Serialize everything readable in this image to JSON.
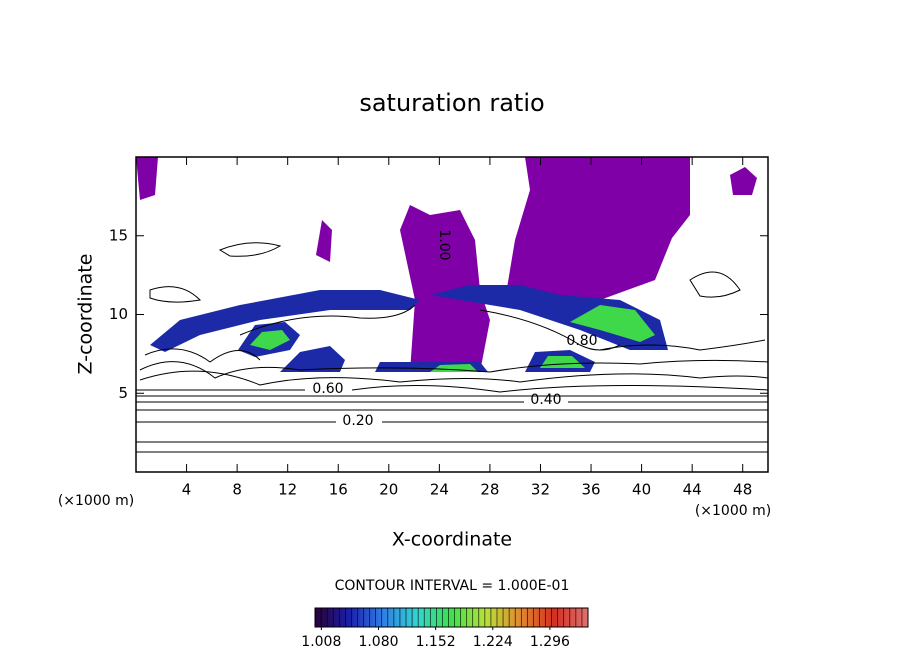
{
  "chart_data": {
    "type": "contour",
    "title": "saturation ratio",
    "x_label": "X-coordinate",
    "y_label": "Z-coordinate",
    "x_unit_label": "(×1000 m)",
    "y_unit_label": "(×1000 m)",
    "xlim": [
      0,
      50
    ],
    "ylim": [
      0,
      20
    ],
    "xticks": [
      4,
      8,
      12,
      16,
      20,
      24,
      28,
      32,
      36,
      40,
      44,
      48
    ],
    "yticks": [
      5,
      10,
      15
    ],
    "contour_interval_label": "CONTOUR INTERVAL = 1.000E-01",
    "contour_labels": [
      {
        "value": 0.2,
        "label": "0.20"
      },
      {
        "value": 0.4,
        "label": "0.40"
      },
      {
        "value": 0.6,
        "label": "0.60"
      },
      {
        "value": 0.8,
        "label": "0.80"
      },
      {
        "value": 1,
        "label": "1.00"
      }
    ],
    "colorbar": {
      "lim": [
        1.0,
        1.344
      ],
      "ticks": [
        1.008,
        {
          "value": 1.08,
          "label": "1.080"
        },
        1.152,
        1.224,
        1.296
      ],
      "colors": [
        "#2a003a",
        "#1b1fa8",
        "#2f7fe6",
        "#34d4d0",
        "#3fe04a",
        "#b8e03a",
        "#e08a30",
        "#d23020",
        "#e07070"
      ]
    }
  }
}
